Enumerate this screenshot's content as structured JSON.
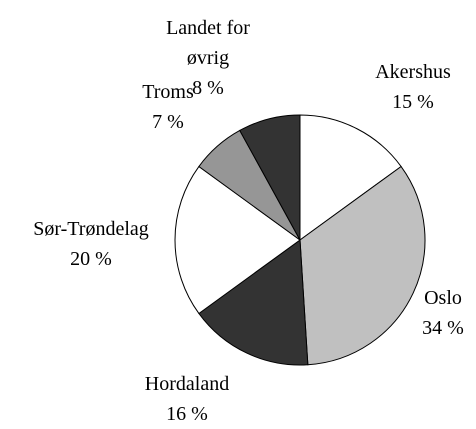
{
  "chart_data": {
    "type": "pie",
    "categories": [
      "Akershus",
      "Oslo",
      "Hordaland",
      "Sør-Trøndelag",
      "Troms",
      "Landet for øvrig"
    ],
    "values": [
      15,
      34,
      16,
      20,
      7,
      8
    ],
    "value_labels": [
      "15 %",
      "34 %",
      "16 %",
      "20 %",
      "7 %",
      "8 %"
    ],
    "colors": [
      "#ffffff",
      "#c0c0c0",
      "#333333",
      "#ffffff",
      "#969696",
      "#333333"
    ]
  }
}
